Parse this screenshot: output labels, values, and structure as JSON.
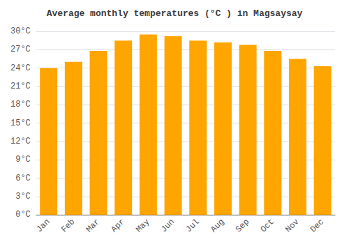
{
  "chart_data": {
    "type": "bar",
    "title": "Average monthly temperatures (°C ) in Magsaysay",
    "categories": [
      "Jan",
      "Feb",
      "Mar",
      "Apr",
      "May",
      "Jun",
      "Jul",
      "Aug",
      "Sep",
      "Oct",
      "Nov",
      "Dec"
    ],
    "values": [
      24.0,
      25.0,
      26.8,
      28.5,
      29.5,
      29.2,
      28.5,
      28.2,
      27.8,
      26.8,
      25.5,
      24.3
    ],
    "color": "#FFA500",
    "ylim": [
      0,
      30
    ],
    "yticks": [
      {
        "value": 0,
        "label": "0°C"
      },
      {
        "value": 3,
        "label": "3°C"
      },
      {
        "value": 6,
        "label": "6°C"
      },
      {
        "value": 9,
        "label": "9°C"
      },
      {
        "value": 12,
        "label": "12°C"
      },
      {
        "value": 15,
        "label": "15°C"
      },
      {
        "value": 18,
        "label": "18°C"
      },
      {
        "value": 21,
        "label": "21°C"
      },
      {
        "value": 24,
        "label": "24°C"
      },
      {
        "value": 27,
        "label": "27°C"
      },
      {
        "value": 30,
        "label": "30°C"
      }
    ],
    "grid": true
  }
}
